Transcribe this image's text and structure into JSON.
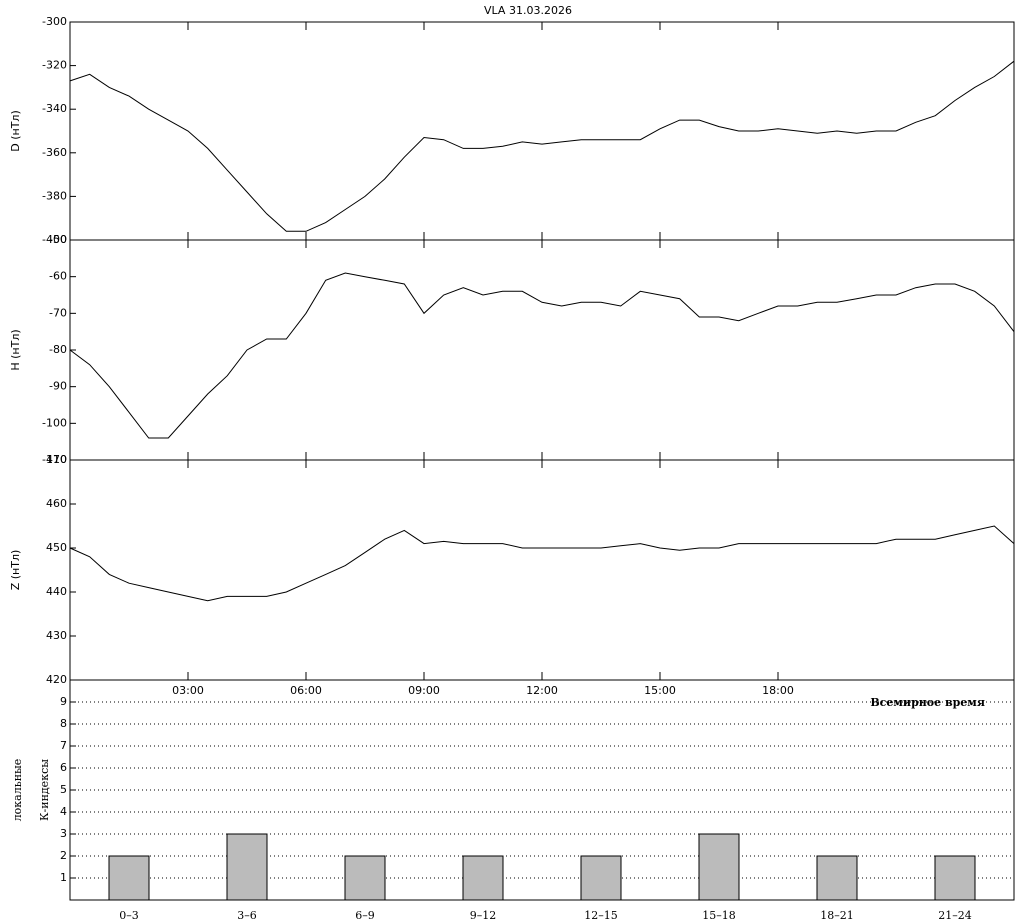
{
  "chart_data": [
    {
      "type": "line",
      "title": "VLA   31.03.2026",
      "y_label": "D (нТл)",
      "color": "#000000",
      "xlim": [
        0,
        24
      ],
      "ylim": [
        -400,
        -300
      ],
      "yticks": [
        -400,
        -380,
        -360,
        -340,
        -320,
        -300
      ],
      "x": [
        0,
        0.5,
        1,
        1.5,
        2,
        2.5,
        3,
        3.5,
        4,
        4.5,
        5,
        5.5,
        6,
        6.5,
        7,
        7.5,
        8,
        8.5,
        9,
        9.5,
        10,
        10.5,
        11,
        11.5,
        12,
        12.5,
        13,
        13.5,
        14,
        14.5,
        15,
        15.5,
        16,
        16.5,
        17,
        17.5,
        18,
        18.5,
        19,
        19.5,
        20,
        20.5,
        21,
        21.5,
        22,
        22.5,
        23,
        23.5,
        24
      ],
      "values": [
        -327,
        -324,
        -330,
        -334,
        -340,
        -345,
        -350,
        -358,
        -368,
        -378,
        -388,
        -396,
        -396,
        -392,
        -386,
        -380,
        -372,
        -362,
        -353,
        -354,
        -358,
        -358,
        -357,
        -355,
        -356,
        -355,
        -354,
        -354,
        -354,
        -354,
        -349,
        -345,
        -345,
        -348,
        -350,
        -350,
        -349,
        -350,
        -351,
        -350,
        -351,
        -350,
        -350,
        -346,
        -343,
        -336,
        -330,
        -325,
        -318
      ]
    },
    {
      "type": "line",
      "y_label": "H (нТл)",
      "color": "#000000",
      "xlim": [
        0,
        24
      ],
      "ylim": [
        -110,
        -50
      ],
      "yticks": [
        -110,
        -100,
        -90,
        -80,
        -70,
        -60,
        -50
      ],
      "x": [
        0,
        0.5,
        1,
        1.5,
        2,
        2.5,
        3,
        3.5,
        4,
        4.5,
        5,
        5.5,
        6,
        6.5,
        7,
        7.5,
        8,
        8.5,
        9,
        9.5,
        10,
        10.5,
        11,
        11.5,
        12,
        12.5,
        13,
        13.5,
        14,
        14.5,
        15,
        15.5,
        16,
        16.5,
        17,
        17.5,
        18,
        18.5,
        19,
        19.5,
        20,
        20.5,
        21,
        21.5,
        22,
        22.5,
        23,
        23.5,
        24
      ],
      "values": [
        -80,
        -84,
        -90,
        -97,
        -104,
        -104,
        -98,
        -92,
        -87,
        -80,
        -77,
        -77,
        -70,
        -61,
        -59,
        -60,
        -61,
        -62,
        -70,
        -65,
        -63,
        -65,
        -64,
        -64,
        -67,
        -68,
        -67,
        -67,
        -68,
        -64,
        -65,
        -66,
        -71,
        -71,
        -72,
        -70,
        -68,
        -68,
        -67,
        -67,
        -66,
        -65,
        -65,
        -63,
        -62,
        -62,
        -64,
        -68,
        -75
      ]
    },
    {
      "type": "line",
      "y_label": "Z (нТл)",
      "x_label": "Всемирное время",
      "color": "#000000",
      "xlim": [
        0,
        24
      ],
      "ylim": [
        420,
        470
      ],
      "yticks": [
        420,
        430,
        440,
        450,
        460,
        470
      ],
      "xticks": [
        {
          "value": 3,
          "label": "03:00"
        },
        {
          "value": 6,
          "label": "06:00"
        },
        {
          "value": 9,
          "label": "09:00"
        },
        {
          "value": 12,
          "label": "12:00"
        },
        {
          "value": 15,
          "label": "15:00"
        },
        {
          "value": 18,
          "label": "18:00"
        }
      ],
      "x": [
        0,
        0.5,
        1,
        1.5,
        2,
        2.5,
        3,
        3.5,
        4,
        4.5,
        5,
        5.5,
        6,
        6.5,
        7,
        7.5,
        8,
        8.5,
        9,
        9.5,
        10,
        10.5,
        11,
        11.5,
        12,
        12.5,
        13,
        13.5,
        14,
        14.5,
        15,
        15.5,
        16,
        16.5,
        17,
        17.5,
        18,
        18.5,
        19,
        19.5,
        20,
        20.5,
        21,
        21.5,
        22,
        22.5,
        23,
        23.5,
        24
      ],
      "values": [
        450,
        448,
        444,
        442,
        441,
        440,
        439,
        438,
        439,
        439,
        439,
        440,
        442,
        444,
        446,
        449,
        452,
        454,
        451,
        451.5,
        451,
        451,
        451,
        450,
        450,
        450,
        450,
        450,
        450.5,
        451,
        450,
        449.5,
        450,
        450,
        451,
        451,
        451,
        451,
        451,
        451,
        451,
        451,
        452,
        452,
        452,
        453,
        454,
        455,
        451
      ]
    },
    {
      "type": "bar",
      "y_label": "К-индексы",
      "y_label2": "локальные",
      "color": "#bbbbbb",
      "grid": true,
      "ylim": [
        0,
        10
      ],
      "yticks": [
        1,
        2,
        3,
        4,
        5,
        6,
        7,
        8,
        9
      ],
      "categories": [
        "0–3",
        "3–6",
        "6–9",
        "9–12",
        "12–15",
        "15–18",
        "18–21",
        "21–24"
      ],
      "values": [
        2,
        3,
        2,
        2,
        2,
        3,
        2,
        2
      ]
    }
  ]
}
